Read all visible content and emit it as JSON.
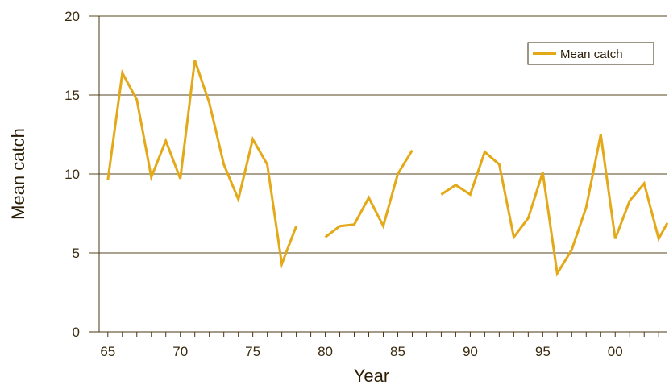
{
  "chart_data": {
    "type": "line",
    "title": "",
    "xlabel": "Year",
    "ylabel": "Mean catch",
    "xlim": [
      1964.4,
      2003.6
    ],
    "ylim": [
      0,
      20
    ],
    "y_ticks": [
      0,
      5,
      10,
      15,
      20
    ],
    "x_ticks": [
      {
        "value": 1965,
        "label": "65"
      },
      {
        "value": 1970,
        "label": "70"
      },
      {
        "value": 1975,
        "label": "75"
      },
      {
        "value": 1980,
        "label": "80"
      },
      {
        "value": 1985,
        "label": "85"
      },
      {
        "value": 1990,
        "label": "90"
      },
      {
        "value": 1995,
        "label": "95"
      },
      {
        "value": 2000,
        "label": "00"
      }
    ],
    "grid": "horizontal",
    "legend": {
      "position": "top-right"
    },
    "series": [
      {
        "name": "Mean catch",
        "color": "#e3a918",
        "segments": [
          [
            [
              1965,
              9.6
            ],
            [
              1966,
              16.4
            ],
            [
              1967,
              14.7
            ],
            [
              1968,
              9.8
            ],
            [
              1969,
              12.1
            ],
            [
              1970,
              9.7
            ],
            [
              1971,
              17.2
            ],
            [
              1972,
              14.5
            ],
            [
              1973,
              10.6
            ],
            [
              1974,
              8.4
            ],
            [
              1975,
              12.2
            ],
            [
              1976,
              10.6
            ],
            [
              1977,
              4.3
            ],
            [
              1978,
              6.7
            ]
          ],
          [
            [
              1980,
              6.0
            ],
            [
              1981,
              6.7
            ],
            [
              1982,
              6.8
            ],
            [
              1983,
              8.5
            ],
            [
              1984,
              6.7
            ],
            [
              1985,
              10.0
            ],
            [
              1986,
              11.5
            ]
          ],
          [
            [
              1988,
              8.7
            ],
            [
              1989,
              9.3
            ],
            [
              1990,
              8.7
            ],
            [
              1991,
              11.4
            ],
            [
              1992,
              10.6
            ],
            [
              1993,
              6.0
            ],
            [
              1994,
              7.2
            ],
            [
              1995,
              10.1
            ],
            [
              1996,
              3.7
            ],
            [
              1997,
              5.2
            ],
            [
              1998,
              7.9
            ],
            [
              1999,
              12.5
            ],
            [
              2000,
              5.9
            ],
            [
              2001,
              8.3
            ],
            [
              2002,
              9.4
            ],
            [
              2003,
              5.9
            ],
            [
              2003.6,
              6.9
            ]
          ]
        ]
      }
    ]
  }
}
